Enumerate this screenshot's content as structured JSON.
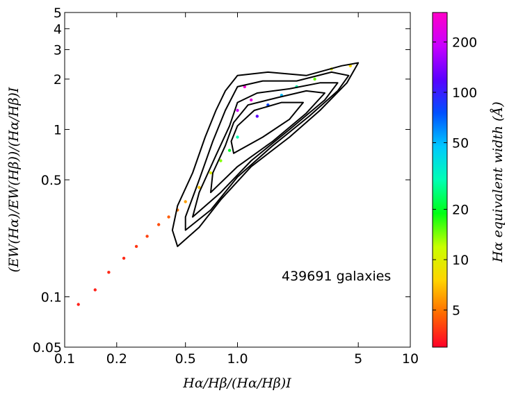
{
  "chart_data": {
    "type": "scatter",
    "title": "",
    "xlabel": "Hα/Hβ/(Hα/Hβ)I",
    "ylabel": "(EW(Hα)/EW(Hβ))/(Hα/Hβ)I",
    "xscale": "log",
    "yscale": "log",
    "xlim": [
      0.1,
      10
    ],
    "ylim": [
      0.05,
      5
    ],
    "xticks": [
      0.1,
      0.2,
      0.5,
      1.0,
      5,
      10
    ],
    "xtick_labels": [
      "0.1",
      "0.2",
      "0.5",
      "1.0",
      "5",
      "10"
    ],
    "yticks": [
      0.05,
      0.1,
      0.5,
      1,
      2,
      3,
      4,
      5
    ],
    "ytick_labels": [
      "0.05",
      "0.1",
      "0.5",
      "1",
      "2",
      "3",
      "4",
      "5"
    ],
    "grid": false,
    "annotation": "439691 galaxies",
    "colorbar": {
      "label": "Hα  equivalent width (Å)",
      "scale": "log",
      "range": [
        3,
        300
      ],
      "ticks": [
        5,
        10,
        20,
        50,
        100,
        200
      ],
      "tick_labels": [
        "5",
        "10",
        "20",
        "50",
        "100",
        "200"
      ],
      "colormap": [
        "#ff0028",
        "#ff6a00",
        "#ffd400",
        "#c8ff00",
        "#00ff14",
        "#00ffb4",
        "#00c8ff",
        "#0050ff",
        "#5a00ff",
        "#c800ff",
        "#ff00c8"
      ]
    },
    "series": [
      {
        "points": [
          [
            0.12,
            0.09,
            3.5
          ],
          [
            0.15,
            0.11,
            3.5
          ],
          [
            0.18,
            0.14,
            3.6
          ],
          [
            0.22,
            0.17,
            3.6
          ],
          [
            0.26,
            0.2,
            3.8
          ],
          [
            0.3,
            0.23,
            4
          ],
          [
            0.35,
            0.27,
            4.2
          ],
          [
            0.4,
            0.3,
            4.5
          ],
          [
            0.45,
            0.33,
            5
          ],
          [
            0.5,
            0.37,
            6
          ],
          [
            0.6,
            0.45,
            7
          ],
          [
            0.7,
            0.55,
            10
          ],
          [
            0.8,
            0.65,
            14
          ],
          [
            0.9,
            0.75,
            20
          ],
          [
            1.0,
            0.9,
            30
          ],
          [
            1.0,
            1.3,
            200
          ],
          [
            1.2,
            1.5,
            250
          ],
          [
            1.1,
            1.8,
            270
          ],
          [
            1.3,
            1.2,
            120
          ],
          [
            1.5,
            1.4,
            80
          ],
          [
            1.8,
            1.6,
            50
          ],
          [
            2.2,
            1.8,
            30
          ],
          [
            2.8,
            2.0,
            15
          ],
          [
            3.5,
            2.3,
            10
          ],
          [
            4.5,
            2.4,
            8
          ]
        ]
      }
    ],
    "contours": [
      [
        [
          0.45,
          0.2
        ],
        [
          0.6,
          0.26
        ],
        [
          0.8,
          0.38
        ],
        [
          1.2,
          0.6
        ],
        [
          2.0,
          0.9
        ],
        [
          3.0,
          1.3
        ],
        [
          4.3,
          1.9
        ],
        [
          5.0,
          2.5
        ],
        [
          4.0,
          2.4
        ],
        [
          2.5,
          2.1
        ],
        [
          1.5,
          2.2
        ],
        [
          1.0,
          2.1
        ],
        [
          0.85,
          1.7
        ],
        [
          0.75,
          1.3
        ],
        [
          0.65,
          0.9
        ],
        [
          0.55,
          0.55
        ],
        [
          0.45,
          0.35
        ],
        [
          0.42,
          0.25
        ],
        [
          0.45,
          0.2
        ]
      ],
      [
        [
          0.5,
          0.25
        ],
        [
          0.7,
          0.33
        ],
        [
          1.0,
          0.52
        ],
        [
          1.6,
          0.8
        ],
        [
          2.6,
          1.2
        ],
        [
          3.8,
          1.7
        ],
        [
          4.4,
          2.1
        ],
        [
          3.5,
          2.2
        ],
        [
          2.2,
          1.95
        ],
        [
          1.4,
          1.95
        ],
        [
          1.0,
          1.8
        ],
        [
          0.85,
          1.3
        ],
        [
          0.72,
          0.85
        ],
        [
          0.6,
          0.5
        ],
        [
          0.5,
          0.3
        ],
        [
          0.5,
          0.25
        ]
      ],
      [
        [
          0.55,
          0.3
        ],
        [
          0.8,
          0.42
        ],
        [
          1.2,
          0.65
        ],
        [
          2.0,
          1.0
        ],
        [
          3.2,
          1.5
        ],
        [
          3.8,
          1.9
        ],
        [
          3.0,
          1.9
        ],
        [
          2.0,
          1.75
        ],
        [
          1.3,
          1.65
        ],
        [
          1.0,
          1.45
        ],
        [
          0.9,
          1.05
        ],
        [
          0.75,
          0.7
        ],
        [
          0.6,
          0.42
        ],
        [
          0.55,
          0.3
        ]
      ],
      [
        [
          0.7,
          0.42
        ],
        [
          1.0,
          0.6
        ],
        [
          1.6,
          0.85
        ],
        [
          2.5,
          1.25
        ],
        [
          3.2,
          1.65
        ],
        [
          2.5,
          1.7
        ],
        [
          1.7,
          1.55
        ],
        [
          1.15,
          1.4
        ],
        [
          0.95,
          1.1
        ],
        [
          0.85,
          0.8
        ],
        [
          0.72,
          0.55
        ],
        [
          0.7,
          0.42
        ]
      ],
      [
        [
          0.95,
          0.72
        ],
        [
          1.4,
          0.9
        ],
        [
          2.0,
          1.15
        ],
        [
          2.4,
          1.45
        ],
        [
          1.8,
          1.45
        ],
        [
          1.25,
          1.3
        ],
        [
          1.0,
          1.05
        ],
        [
          0.92,
          0.85
        ],
        [
          0.95,
          0.72
        ]
      ]
    ]
  }
}
